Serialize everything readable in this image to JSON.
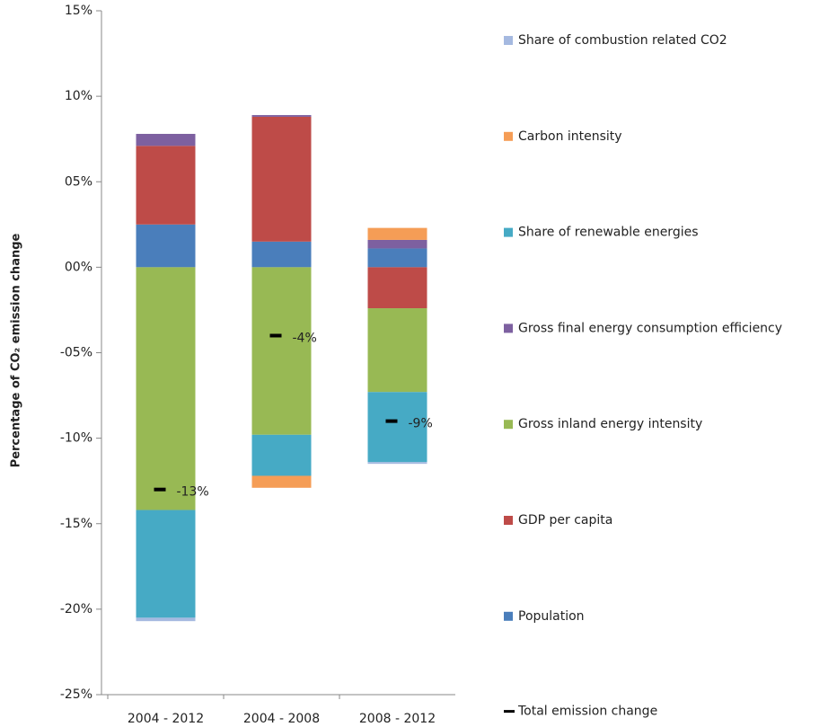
{
  "chart_data": {
    "type": "stacked_bar",
    "y_label": "Percentage of CO₂ emission change",
    "categories": [
      "2004 - 2012",
      "2004 - 2008",
      "2008 - 2012"
    ],
    "ylim": [
      -25,
      15
    ],
    "yticks": [
      {
        "value": -25,
        "label": "-25%"
      },
      {
        "value": -20,
        "label": "-20%"
      },
      {
        "value": -15,
        "label": "-15%"
      },
      {
        "value": -10,
        "label": "-10%"
      },
      {
        "value": -5,
        "label": "-05%"
      },
      {
        "value": 0,
        "label": "00%"
      },
      {
        "value": 5,
        "label": "05%"
      },
      {
        "value": 10,
        "label": "10%"
      },
      {
        "value": 15,
        "label": "15%"
      }
    ],
    "series": [
      {
        "name": "Population",
        "color": "#4a7ebb",
        "values": [
          2.5,
          1.5,
          1.1
        ]
      },
      {
        "name": "GDP per capita",
        "color": "#be4b48",
        "values": [
          4.6,
          7.3,
          -2.4
        ]
      },
      {
        "name": "Gross inland energy intensity",
        "color": "#98b954",
        "values": [
          -14.2,
          -9.8,
          -4.9
        ]
      },
      {
        "name": "Gross final energy consumption efficiency",
        "color": "#7d60a0",
        "values": [
          0.7,
          0.1,
          0.5
        ]
      },
      {
        "name": "Share of renewable energies",
        "color": "#46aac5",
        "values": [
          -6.3,
          -2.4,
          -4.1
        ]
      },
      {
        "name": "Carbon intensity",
        "color": "#f59d56",
        "values": [
          0,
          -0.7,
          0.7
        ]
      },
      {
        "name": "Share of combustion related CO2",
        "color": "#a5b9e0",
        "values": [
          -0.2,
          0,
          -0.1
        ]
      }
    ],
    "total": {
      "name": "Total emission change",
      "color": "#000000",
      "values": [
        -13,
        -4,
        -9
      ],
      "value_labels": [
        "-13%",
        "-4%",
        "-9%"
      ]
    }
  }
}
